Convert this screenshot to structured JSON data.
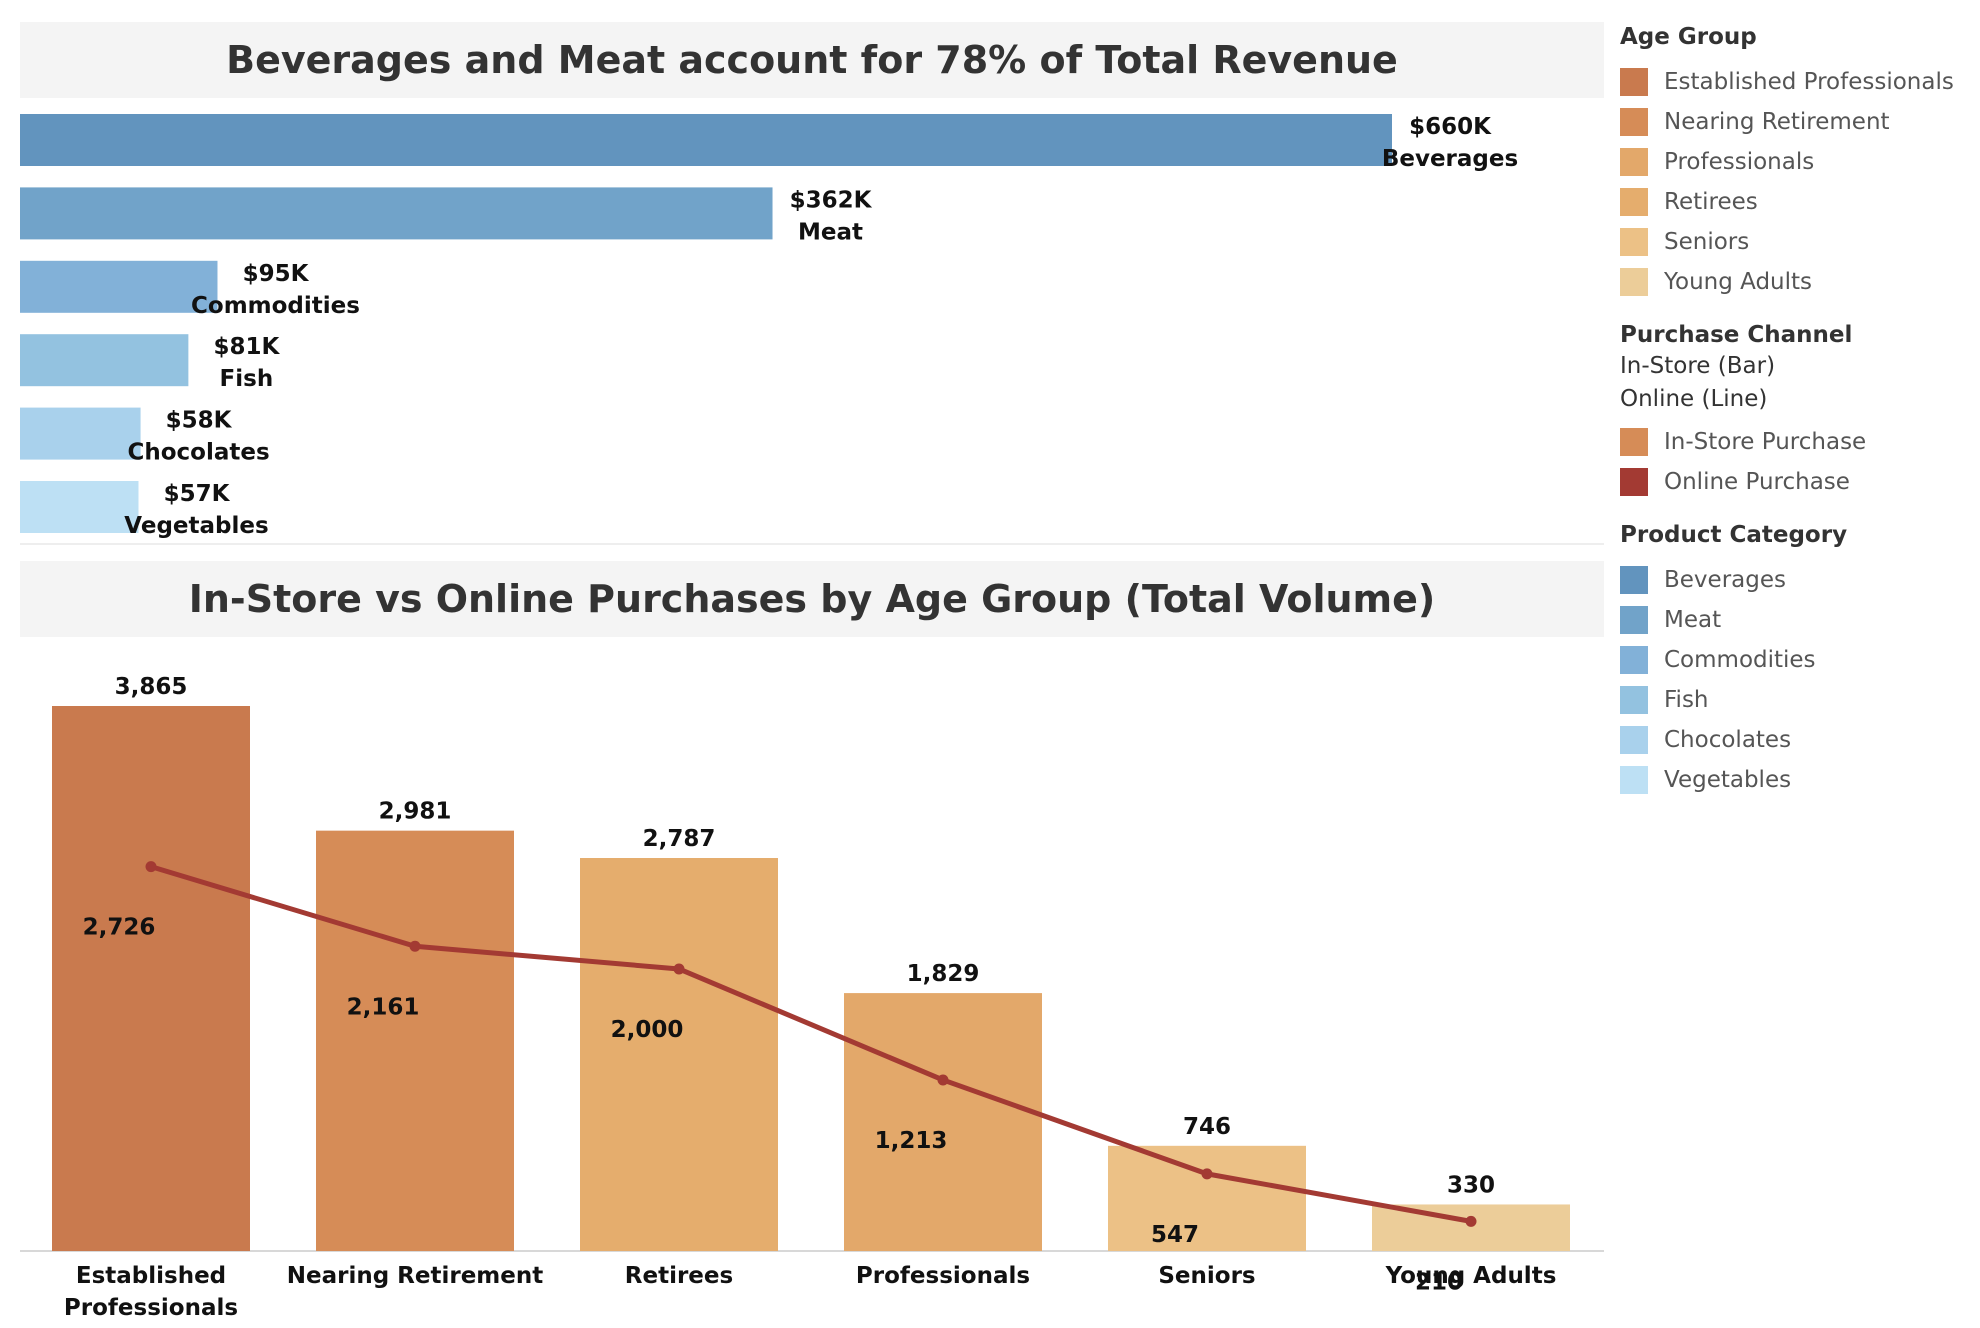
{
  "legend": {
    "age_group": {
      "title": "Age Group",
      "items": [
        {
          "label": "Established Professionals",
          "color": "#c97a4e"
        },
        {
          "label": "Nearing Retirement",
          "color": "#d68c57"
        },
        {
          "label": "Professionals",
          "color": "#e3a86a"
        },
        {
          "label": "Retirees",
          "color": "#e5ad6d"
        },
        {
          "label": "Seniors",
          "color": "#ecc186"
        },
        {
          "label": "Young Adults",
          "color": "#eccd99"
        }
      ]
    },
    "purchase_channel": {
      "title": "Purchase Channel",
      "sub1": "In-Store (Bar)",
      "sub2": "Online (Line)",
      "items": [
        {
          "label": "In-Store Purchase",
          "color": "#d68c57"
        },
        {
          "label": "Online Purchase",
          "color": "#a33a33"
        }
      ]
    },
    "product_category": {
      "title": "Product Category",
      "items": [
        {
          "label": "Beverages",
          "color": "#6294be"
        },
        {
          "label": "Meat",
          "color": "#71a3c9"
        },
        {
          "label": "Commodities",
          "color": "#82b1d8"
        },
        {
          "label": "Fish",
          "color": "#93c2e0"
        },
        {
          "label": "Chocolates",
          "color": "#a9d1ec"
        },
        {
          "label": "Vegetables",
          "color": "#bde0f4"
        }
      ]
    }
  },
  "chart_data": [
    {
      "type": "bar",
      "orientation": "horizontal",
      "title": "Beverages and Meat account for 78% of Total Revenue",
      "categories": [
        "Beverages",
        "Meat",
        "Commodities",
        "Fish",
        "Chocolates",
        "Vegetables"
      ],
      "values": [
        660,
        362,
        95,
        81,
        58,
        57
      ],
      "value_labels": [
        "$660K",
        "$362K",
        "$95K",
        "$81K",
        "$58K",
        "$57K"
      ],
      "colors": [
        "#6294be",
        "#71a3c9",
        "#82b1d8",
        "#93c2e0",
        "#a9d1ec",
        "#bde0f4"
      ],
      "unit": "$K",
      "xlim": [
        0,
        760
      ],
      "grid": false
    },
    {
      "type": "bar",
      "title": "In-Store vs Online Purchases by Age Group (Total Volume)",
      "categories": [
        "Established Professionals",
        "Nearing Retirement",
        "Retirees",
        "Professionals",
        "Seniors",
        "Young Adults"
      ],
      "category_labels": [
        [
          "Established",
          "Professionals"
        ],
        [
          "Nearing Retirement"
        ],
        [
          "Retirees"
        ],
        [
          "Professionals"
        ],
        [
          "Seniors"
        ],
        [
          "Young Adults"
        ]
      ],
      "series": [
        {
          "name": "In-Store Purchase",
          "type": "bar",
          "values": [
            3865,
            2981,
            2787,
            1829,
            746,
            330
          ],
          "labels": [
            "3,865",
            "2,981",
            "2,787",
            "1,829",
            "746",
            "330"
          ],
          "colors": [
            "#c97a4e",
            "#d68c57",
            "#e5ad6d",
            "#e3a86a",
            "#ecc186",
            "#eccd99"
          ]
        },
        {
          "name": "Online Purchase",
          "type": "line",
          "values": [
            2726,
            2161,
            2000,
            1213,
            547,
            210
          ],
          "labels": [
            "2,726",
            "2,161",
            "2,000",
            "1,213",
            "547",
            "210"
          ],
          "color": "#a33a33"
        }
      ],
      "ylim": [
        0,
        4200
      ],
      "grid": false
    }
  ]
}
